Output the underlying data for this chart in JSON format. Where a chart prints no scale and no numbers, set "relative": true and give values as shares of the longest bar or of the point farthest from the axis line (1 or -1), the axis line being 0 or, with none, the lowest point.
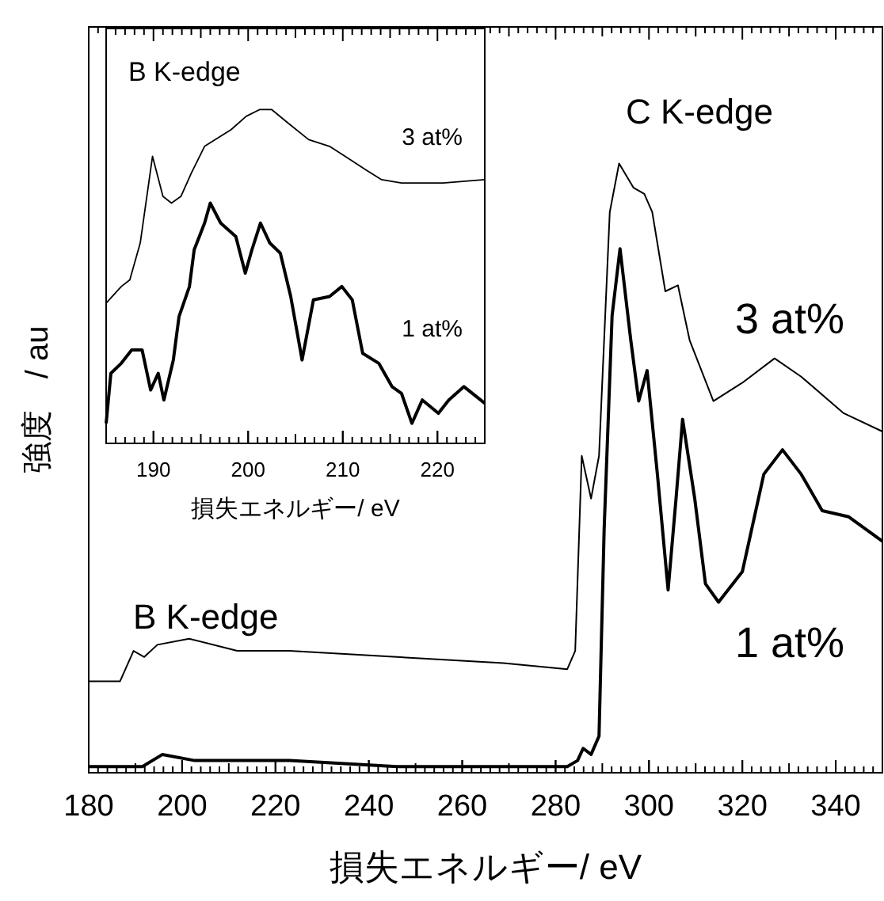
{
  "chart_data": [
    {
      "type": "line",
      "relative": true,
      "xlabel": "損失エネルギー/ eV",
      "ylabel": "強度　/ au",
      "xlim": [
        180,
        350
      ],
      "xticks": [
        180,
        200,
        220,
        240,
        260,
        280,
        300,
        320,
        340
      ],
      "tick_labels": "x",
      "line_style": "solid",
      "marker": "none",
      "annotations": [
        "B K-edge",
        "C K-edge"
      ],
      "series": [
        {
          "name": "3 at%",
          "color": "#000000",
          "x": [
            180,
            186.7,
            189.6,
            191.9,
            194.7,
            201.5,
            211.8,
            223,
            246,
            268.8,
            282.5,
            284.2,
            285.6,
            287.6,
            289.3,
            291.6,
            293.6,
            296.7,
            299,
            300.7,
            303.5,
            306.2,
            308.7,
            313.8,
            320,
            326.9,
            332.6,
            341.7,
            350
          ],
          "values": [
            0.15,
            0.15,
            0.2,
            0.19,
            0.21,
            0.22,
            0.2,
            0.2,
            0.19,
            0.18,
            0.17,
            0.2,
            0.52,
            0.45,
            0.52,
            0.92,
            1.0,
            0.96,
            0.95,
            0.92,
            0.79,
            0.8,
            0.71,
            0.61,
            0.64,
            0.68,
            0.65,
            0.59,
            0.56
          ]
        },
        {
          "name": "1 at%",
          "color": "#000000",
          "x": [
            180,
            191.5,
            195.8,
            202.7,
            207.3,
            223,
            246,
            282.5,
            284.7,
            285.9,
            287.6,
            289.3,
            290.4,
            292.1,
            293.8,
            296.1,
            297.8,
            299.6,
            301.8,
            304.1,
            305.8,
            307.2,
            309.8,
            312.1,
            314.9,
            320,
            324.6,
            328.6,
            332.6,
            337.1,
            342.8,
            350
          ],
          "values": [
            0.01,
            0.01,
            0.03,
            0.02,
            0.02,
            0.02,
            0.01,
            0.01,
            0.02,
            0.04,
            0.03,
            0.06,
            0.4,
            0.75,
            0.86,
            0.71,
            0.61,
            0.66,
            0.49,
            0.3,
            0.45,
            0.58,
            0.45,
            0.31,
            0.28,
            0.33,
            0.49,
            0.53,
            0.49,
            0.43,
            0.42,
            0.38
          ]
        }
      ]
    },
    {
      "type": "line",
      "relative": true,
      "title": "B K-edge",
      "xlabel": "損失エネルギー/ eV",
      "xlim": [
        185,
        225
      ],
      "xticks": [
        190,
        200,
        210,
        220
      ],
      "tick_labels": "x",
      "line_style": "solid",
      "marker": "none",
      "series": [
        {
          "name": "3 at%",
          "color": "#000000",
          "x": [
            185,
            186.6,
            187.5,
            188.6,
            189.9,
            191,
            191.9,
            192.9,
            194,
            195.4,
            198.2,
            199.8,
            201.2,
            202.5,
            204.2,
            206.4,
            208.6,
            210.8,
            212.4,
            214.1,
            216.2,
            218.4,
            220.6,
            225
          ],
          "values": [
            0.42,
            0.47,
            0.49,
            0.6,
            0.86,
            0.74,
            0.72,
            0.74,
            0.81,
            0.89,
            0.94,
            0.98,
            1.0,
            1.0,
            0.96,
            0.91,
            0.89,
            0.85,
            0.82,
            0.79,
            0.78,
            0.78,
            0.78,
            0.79
          ]
        },
        {
          "name": "1 at%",
          "color": "#000000",
          "x": [
            185,
            185.5,
            186.6,
            187.7,
            188.8,
            189.7,
            190.5,
            191.1,
            192.1,
            192.7,
            193.8,
            194.3,
            195.4,
            196,
            197.1,
            198.7,
            199.7,
            200.4,
            201.3,
            202.3,
            203.4,
            204.5,
            205.7,
            206.9,
            208.6,
            209.9,
            211,
            212.1,
            213.8,
            215.2,
            216.2,
            217.3,
            218.4,
            220.1,
            221.2,
            222.8,
            225
          ],
          "values": [
            0.06,
            0.21,
            0.24,
            0.28,
            0.28,
            0.16,
            0.21,
            0.13,
            0.25,
            0.38,
            0.47,
            0.58,
            0.66,
            0.72,
            0.66,
            0.62,
            0.51,
            0.58,
            0.66,
            0.6,
            0.57,
            0.44,
            0.25,
            0.43,
            0.44,
            0.47,
            0.43,
            0.27,
            0.24,
            0.17,
            0.15,
            0.06,
            0.13,
            0.09,
            0.13,
            0.17,
            0.12
          ]
        }
      ]
    }
  ]
}
